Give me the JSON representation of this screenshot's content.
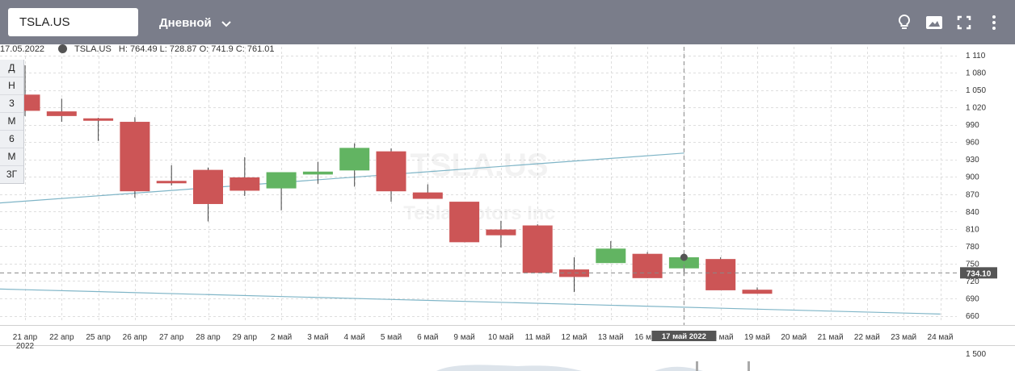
{
  "toolbar": {
    "ticker_value": "TSLA.US",
    "interval_label": "Дневной",
    "icons": [
      "lightbulb-icon",
      "image-icon",
      "fullscreen-icon",
      "more-vertical-icon"
    ],
    "bg_color": "#7a7d8a"
  },
  "info": {
    "date": "17.05.2022",
    "symbol": "TSLA.US",
    "ohlc_text": "H: 764.49 L: 728.87 O: 741.9 C: 761.01"
  },
  "periods": [
    "Д",
    "Н",
    "3",
    "М",
    "6",
    "М",
    "3Г"
  ],
  "watermark": {
    "symbol": "TSLA.US",
    "name": "Tesla Motors Inc"
  },
  "current_price_label": "734.10",
  "crosshair_label": "17 май 2022",
  "chart_data": {
    "type": "candlestick",
    "title": "",
    "colors": {
      "up": "#62b462",
      "down": "#cc5556",
      "trendline": "#7fb5c7",
      "price_tag": "#555555"
    },
    "y_ticks": [
      "1 110",
      "1 080",
      "1 050",
      "1 020",
      "990",
      "960",
      "930",
      "900",
      "870",
      "840",
      "810",
      "780",
      "750",
      "720",
      "690",
      "660"
    ],
    "y_range": [
      660,
      1110
    ],
    "volume_tick": "1 500",
    "x_labels": [
      "21 апр",
      "22 апр",
      "25 апр",
      "26 апр",
      "27 апр",
      "28 апр",
      "29 апр",
      "2 май",
      "3 май",
      "4 май",
      "5 май",
      "6 май",
      "9 май",
      "10 май",
      "11 май",
      "12 май",
      "13 май",
      "16 май",
      "17 май",
      "18 май",
      "19 май",
      "20 май",
      "21 май",
      "22 май",
      "23 май",
      "24 май"
    ],
    "x_year_label": "2022",
    "candles": [
      {
        "date": "21 апр",
        "o": 1042,
        "h": 1093,
        "l": 1005,
        "c": 1014
      },
      {
        "date": "22 апр",
        "o": 1013,
        "h": 1035,
        "l": 995,
        "c": 1005
      },
      {
        "date": "25 апр",
        "o": 1001,
        "h": 1002,
        "l": 962,
        "c": 998
      },
      {
        "date": "26 апр",
        "o": 995,
        "h": 1003,
        "l": 864,
        "c": 875
      },
      {
        "date": "27 апр",
        "o": 893,
        "h": 920,
        "l": 885,
        "c": 890
      },
      {
        "date": "28 апр",
        "o": 912,
        "h": 916,
        "l": 823,
        "c": 853
      },
      {
        "date": "29 апр",
        "o": 899,
        "h": 934,
        "l": 867,
        "c": 876
      },
      {
        "date": "2 май",
        "o": 880,
        "h": 907,
        "l": 842,
        "c": 908
      },
      {
        "date": "3 май",
        "o": 904,
        "h": 926,
        "l": 888,
        "c": 909
      },
      {
        "date": "4 май",
        "o": 911,
        "h": 958,
        "l": 883,
        "c": 950
      },
      {
        "date": "5 май",
        "o": 944,
        "h": 949,
        "l": 857,
        "c": 875
      },
      {
        "date": "6 май",
        "o": 873,
        "h": 887,
        "l": 862,
        "c": 862
      },
      {
        "date": "9 май",
        "o": 857,
        "h": 856,
        "l": 787,
        "c": 787
      },
      {
        "date": "10 май",
        "o": 809,
        "h": 824,
        "l": 778,
        "c": 799
      },
      {
        "date": "11 май",
        "o": 816,
        "h": 818,
        "l": 734,
        "c": 734
      },
      {
        "date": "12 май",
        "o": 740,
        "h": 761,
        "l": 701,
        "c": 727
      },
      {
        "date": "13 май",
        "o": 751,
        "h": 789,
        "l": 751,
        "c": 776
      },
      {
        "date": "16 май",
        "o": 767,
        "h": 770,
        "l": 725,
        "c": 725
      },
      {
        "date": "17 май",
        "o": 741.9,
        "h": 764.49,
        "l": 728.87,
        "c": 761.01
      },
      {
        "date": "18 май",
        "o": 758,
        "h": 761,
        "l": 708,
        "c": 704
      },
      {
        "date": "19 май",
        "o": 705,
        "h": 709,
        "l": 698,
        "c": 698
      }
    ],
    "trendlines": [
      {
        "from": {
          "x": "21 апр",
          "y": 858
        },
        "to": {
          "x": "17 май",
          "y": 941
        }
      },
      {
        "from": {
          "x": "21 апр",
          "y": 705
        },
        "to": {
          "x": "24 май",
          "y": 663
        }
      }
    ]
  }
}
